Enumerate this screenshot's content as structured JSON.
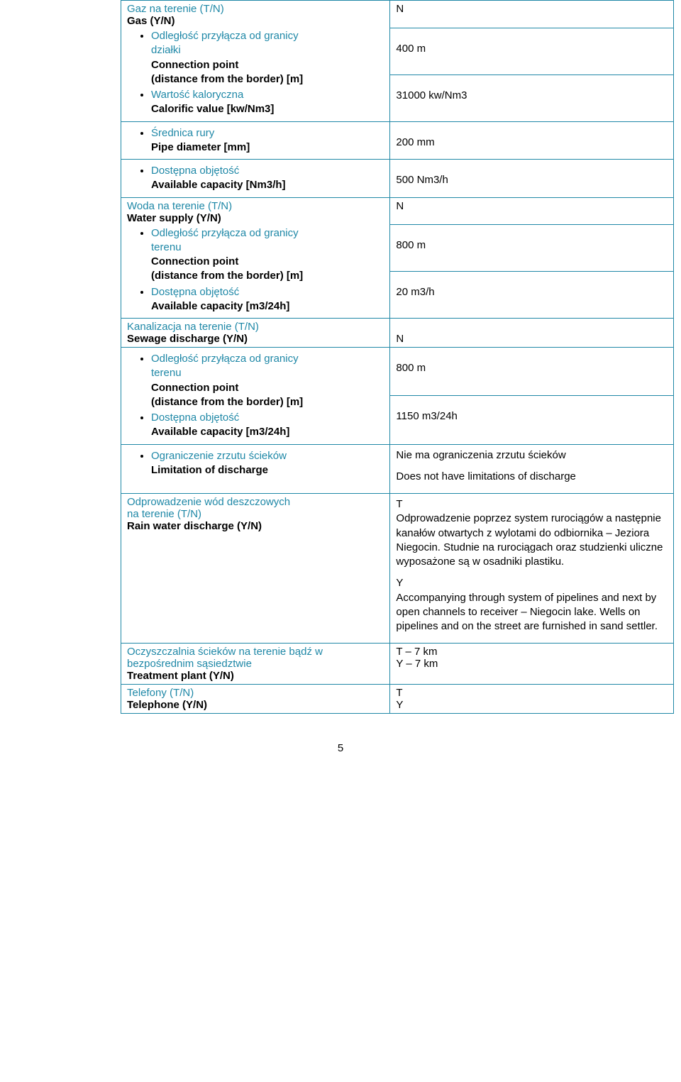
{
  "rows": {
    "gas": {
      "header_pl": "Gaz na terenie (T/N)",
      "header_en": "Gas (Y/N)",
      "value": "N",
      "conn_pl_l1": "Odległość przyłącza od granicy",
      "conn_pl_l2": "działki",
      "conn_en_l1": "Connection point",
      "conn_en_l2": "(distance from the border) [m]",
      "conn_value": "400 m",
      "cal_pl": "Wartość kaloryczna",
      "cal_en": "Calorific value [kw/Nm3]",
      "cal_value": "31000 kw/Nm3",
      "diam_pl": "Średnica rury",
      "diam_en": "Pipe diameter [mm]",
      "diam_value": "200 mm",
      "cap_pl": "Dostępna objętość",
      "cap_en": "Available capacity [Nm3/h]",
      "cap_value": "500 Nm3/h"
    },
    "water": {
      "header_pl": "Woda  na terenie (T/N)",
      "header_en": "Water supply (Y/N)",
      "value": "N",
      "conn_pl_l1": "Odległość przyłącza od granicy",
      "conn_pl_l2": "terenu",
      "conn_en_l1": "Connection point",
      "conn_en_l2": "(distance from the border) [m]",
      "conn_value": "800 m",
      "cap_pl": "Dostępna objętość",
      "cap_en": "Available capacity [m3/24h]",
      "cap_value": "20 m3/h"
    },
    "sewage": {
      "header_pl": "Kanalizacja na terenie (T/N)",
      "header_en": "Sewage discharge (Y/N)",
      "value": "N",
      "conn_pl_l1": "Odległość przyłącza od granicy",
      "conn_pl_l2": "terenu",
      "conn_en_l1": "Connection point",
      "conn_en_l2": "(distance from the border) [m]",
      "conn_value": "800 m",
      "cap_pl": "Dostępna objętość",
      "cap_en": "Available capacity [m3/24h]",
      "cap_value": "1150 m3/24h",
      "lim_pl": "Ograniczenie zrzutu  ścieków",
      "lim_en": "Limitation of discharge",
      "lim_val_pl": "Nie ma ograniczenia zrzutu ścieków",
      "lim_val_en": "Does not have limitations of discharge"
    },
    "rain": {
      "header_pl_l1": "Odprowadzenie wód  deszczowych",
      "header_pl_l2": "na terenie (T/N)",
      "header_en": "Rain water discharge (Y/N)",
      "value_t": "T",
      "value_pl": "Odprowadzenie poprzez system rurociągów a następnie kanałów otwartych z wylotami do odbiornika – Jeziora Niegocin. Studnie na rurociągach oraz studzienki uliczne wyposażone są w osadniki plastiku.",
      "value_y": "Y",
      "value_en": "Accompanying through system of pipelines and next by open channels to receiver – Niegocin lake. Wells on pipelines and on the street are furnished in sand settler."
    },
    "treatment": {
      "header_pl_l1": "Oczyszczalnia ścieków na terenie bądź w",
      "header_pl_l2": "bezpośrednim sąsiedztwie",
      "header_en": "Treatment plant (Y/N)",
      "value_l1": "T – 7 km",
      "value_l2": "Y – 7 km"
    },
    "telephone": {
      "header_pl": "Telefony (T/N)",
      "header_en": "Telephone (Y/N)",
      "value_l1": "T",
      "value_l2": "Y"
    }
  },
  "page_number": "5",
  "colors": {
    "border": "#1f88a7",
    "label_pl": "#1f88a7",
    "label_en": "#000000",
    "text": "#000000",
    "background": "#ffffff"
  },
  "typography": {
    "font_family": "Arial",
    "font_size_pt": 11
  }
}
